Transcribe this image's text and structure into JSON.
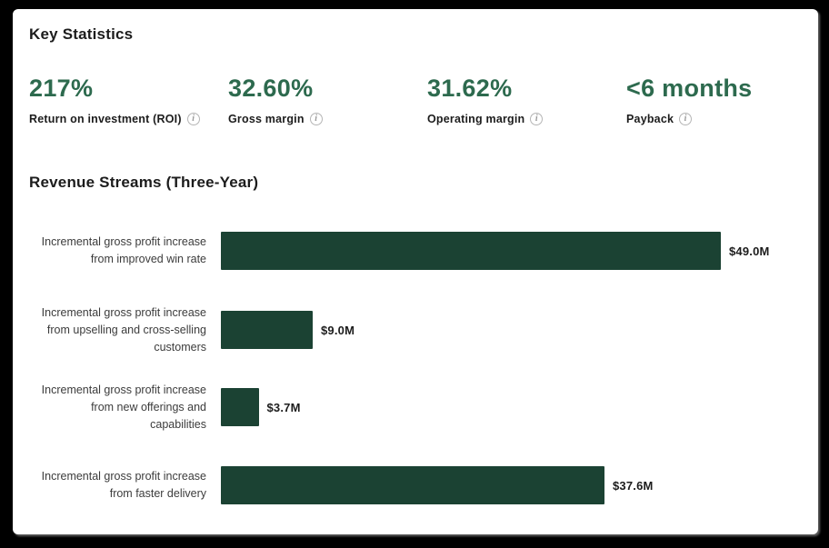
{
  "colors": {
    "frame_background": "#000000",
    "card_background": "#ffffff",
    "stat_green": "#2d6a4e",
    "bar_green": "#1b4233",
    "heading_text": "#1c1c1c",
    "chart_label_text": "#3c3c3c",
    "info_icon_gray": "#9a9a9a"
  },
  "key_statistics": {
    "title": "Key Statistics",
    "stats": [
      {
        "value": "217%",
        "label": "Return on investment (ROI)",
        "info": "i"
      },
      {
        "value": "32.60%",
        "label": "Gross margin",
        "info": "i"
      },
      {
        "value": "31.62%",
        "label": "Operating margin",
        "info": "i"
      },
      {
        "value": "<6 months",
        "label": "Payback",
        "info": "i"
      }
    ]
  },
  "chart_data": {
    "type": "bar",
    "orientation": "horizontal",
    "title": "Revenue Streams (Three-Year)",
    "categories": [
      "Incremental gross profit increase from improved win rate",
      "Incremental gross profit increase from upselling and cross-selling customers",
      "Incremental gross profit increase from new offerings and capabilities",
      "Incremental gross profit increase from faster delivery"
    ],
    "label_lines": [
      [
        "Incremental gross profit increase",
        "from improved win rate"
      ],
      [
        "Incremental gross profit increase",
        "from upselling and cross-selling",
        "customers"
      ],
      [
        "Incremental gross profit increase",
        "from new offerings and",
        "capabilities"
      ],
      [
        "Incremental gross profit increase",
        "from faster delivery"
      ]
    ],
    "values": [
      49.0,
      9.0,
      3.7,
      37.6
    ],
    "value_labels": [
      "$49.0M",
      "$9.0M",
      "$3.7M",
      "$37.6M"
    ],
    "xlim": [
      0,
      49
    ],
    "grid": false,
    "legend": false,
    "bar_color": "#1b4233"
  }
}
